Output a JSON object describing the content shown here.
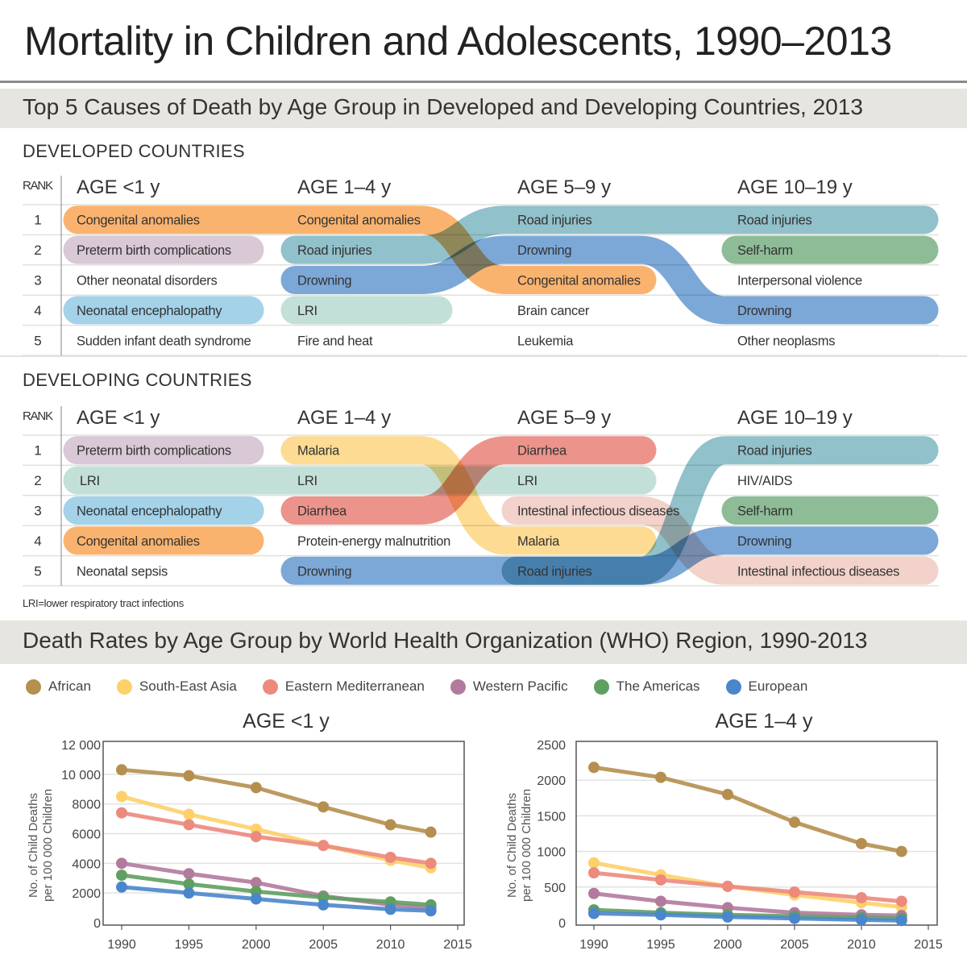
{
  "title": "Mortality in Children and Adolescents, 1990–2013",
  "section1": {
    "heading": "Top 5 Causes of Death by Age Group in Developed and Developing Countries, 2013",
    "rank_label": "RANK",
    "age_groups": [
      "AGE <1 y",
      "AGE 1–4 y",
      "AGE 5–9 y",
      "AGE 10–19 y"
    ],
    "ranks": [
      "1",
      "2",
      "3",
      "4",
      "5"
    ],
    "cause_colors": {
      "Congenital anomalies": "#f9a85a",
      "Preterm birth complications": "#d4c0d0",
      "Neonatal encephalopathy": "#96cce6",
      "Road injuries": "#82b8c4",
      "Drowning": "#6a9cd3",
      "LRI": "#b9dcd1",
      "Self-harm": "#7db389",
      "Malaria": "#fdd683",
      "Diarrhea": "#e9857b",
      "Intestinal infectious diseases": "#f0ccc3"
    },
    "developed": {
      "label": "DEVELOPED COUNTRIES",
      "columns": [
        [
          "Congenital anomalies",
          "Preterm birth complications",
          "Other neonatal disorders",
          "Neonatal encephalopathy",
          "Sudden infant death syndrome"
        ],
        [
          "Congenital anomalies",
          "Road injuries",
          "Drowning",
          "LRI",
          "Fire and heat"
        ],
        [
          "Road injuries",
          "Drowning",
          "Congenital anomalies",
          "Brain cancer",
          "Leukemia"
        ],
        [
          "Road injuries",
          "Self-harm",
          "Interpersonal violence",
          "Drowning",
          "Other neoplasms"
        ]
      ],
      "flows": [
        {
          "cause": "Congenital anomalies",
          "ranks_by_age": [
            1,
            1,
            3,
            null
          ]
        },
        {
          "cause": "Road injuries",
          "ranks_by_age": [
            null,
            2,
            1,
            1
          ]
        },
        {
          "cause": "Drowning",
          "ranks_by_age": [
            null,
            3,
            2,
            4
          ]
        },
        {
          "cause": "Preterm birth complications",
          "ranks_by_age": [
            2,
            null,
            null,
            null
          ]
        },
        {
          "cause": "Neonatal encephalopathy",
          "ranks_by_age": [
            4,
            null,
            null,
            null
          ]
        },
        {
          "cause": "LRI",
          "ranks_by_age": [
            null,
            4,
            null,
            null
          ]
        },
        {
          "cause": "Self-harm",
          "ranks_by_age": [
            null,
            null,
            null,
            2
          ]
        }
      ]
    },
    "developing": {
      "label": "DEVELOPING COUNTRIES",
      "columns": [
        [
          "Preterm birth complications",
          "LRI",
          "Neonatal encephalopathy",
          "Congenital anomalies",
          "Neonatal sepsis"
        ],
        [
          "Malaria",
          "LRI",
          "Diarrhea",
          "Protein-energy malnutrition",
          "Drowning"
        ],
        [
          "Diarrhea",
          "LRI",
          "Intestinal infectious diseases",
          "Malaria",
          "Road injuries"
        ],
        [
          "Road injuries",
          "HIV/AIDS",
          "Self-harm",
          "Drowning",
          "Intestinal infectious diseases"
        ]
      ],
      "flows": [
        {
          "cause": "Preterm birth complications",
          "ranks_by_age": [
            1,
            null,
            null,
            null
          ]
        },
        {
          "cause": "LRI",
          "ranks_by_age": [
            2,
            2,
            2,
            null
          ]
        },
        {
          "cause": "Neonatal encephalopathy",
          "ranks_by_age": [
            3,
            null,
            null,
            null
          ]
        },
        {
          "cause": "Congenital anomalies",
          "ranks_by_age": [
            4,
            null,
            null,
            null
          ]
        },
        {
          "cause": "Malaria",
          "ranks_by_age": [
            null,
            1,
            4,
            null
          ]
        },
        {
          "cause": "Diarrhea",
          "ranks_by_age": [
            null,
            3,
            1,
            null
          ]
        },
        {
          "cause": "Drowning",
          "ranks_by_age": [
            null,
            5,
            null,
            4
          ]
        },
        {
          "cause": "Intestinal infectious diseases",
          "ranks_by_age": [
            null,
            null,
            3,
            5
          ]
        },
        {
          "cause": "Road injuries",
          "ranks_by_age": [
            null,
            null,
            5,
            1
          ]
        },
        {
          "cause": "Self-harm",
          "ranks_by_age": [
            null,
            null,
            null,
            3
          ]
        }
      ]
    },
    "footnote": "LRI=lower respiratory tract infections"
  },
  "section2": {
    "heading": "Death Rates by Age Group by World Health Organization (WHO) Region, 1990-2013",
    "legend": [
      {
        "name": "African",
        "color": "#b58f4f"
      },
      {
        "name": "South-East Asia",
        "color": "#fdd06a"
      },
      {
        "name": "Eastern Mediterranean",
        "color": "#ec8a7e"
      },
      {
        "name": "Western Pacific",
        "color": "#b27a9d"
      },
      {
        "name": "The Americas",
        "color": "#5f9f60"
      },
      {
        "name": "European",
        "color": "#4a86cb"
      }
    ]
  },
  "chart_data": [
    {
      "type": "line",
      "title": "AGE <1 y",
      "xlabel": "",
      "ylabel": "No. of Child Deaths per 100 000 Children",
      "ylabel_lines": [
        "No. of Child Deaths",
        "per 100 000 Children"
      ],
      "xlim": [
        1990,
        2015
      ],
      "ylim": [
        0,
        12000
      ],
      "x_ticks": [
        "1990",
        "1995",
        "2000",
        "2005",
        "2010",
        "2015"
      ],
      "y_ticks": [
        0,
        2000,
        4000,
        6000,
        8000,
        10000,
        12000
      ],
      "y_tick_labels": [
        "0",
        "2000",
        "4000",
        "6000",
        "8000",
        "10 000",
        "12 000"
      ],
      "grid": true,
      "legend": "top",
      "x": [
        1990,
        1995,
        2000,
        2005,
        2010,
        2013
      ],
      "series": [
        {
          "name": "African",
          "values": [
            10300,
            9900,
            9100,
            7800,
            6600,
            6100
          ]
        },
        {
          "name": "South-East Asia",
          "values": [
            8500,
            7300,
            6300,
            5200,
            4200,
            3700
          ]
        },
        {
          "name": "Eastern Mediterranean",
          "values": [
            7400,
            6600,
            5800,
            5200,
            4400,
            4000
          ]
        },
        {
          "name": "Western Pacific",
          "values": [
            4000,
            3300,
            2700,
            1800,
            1200,
            1000
          ]
        },
        {
          "name": "The Americas",
          "values": [
            3200,
            2600,
            2100,
            1700,
            1400,
            1200
          ]
        },
        {
          "name": "European",
          "values": [
            2400,
            2000,
            1600,
            1200,
            900,
            800
          ]
        }
      ]
    },
    {
      "type": "line",
      "title": "AGE 1–4 y",
      "xlabel": "",
      "ylabel": "No. of Child Deaths per 100 000 Children",
      "ylabel_lines": [
        "No. of Child Deaths",
        "per 100 000 Children"
      ],
      "xlim": [
        1990,
        2015
      ],
      "ylim": [
        0,
        2500
      ],
      "x_ticks": [
        "1990",
        "1995",
        "2000",
        "2005",
        "2010",
        "2015"
      ],
      "y_ticks": [
        0,
        500,
        1000,
        1500,
        2000,
        2500
      ],
      "y_tick_labels": [
        "0",
        "500",
        "1000",
        "1500",
        "2000",
        "2500"
      ],
      "grid": true,
      "legend": "top",
      "x": [
        1990,
        1995,
        2000,
        2005,
        2010,
        2013
      ],
      "series": [
        {
          "name": "African",
          "values": [
            2180,
            2040,
            1800,
            1410,
            1110,
            1000
          ]
        },
        {
          "name": "South-East Asia",
          "values": [
            840,
            670,
            510,
            390,
            280,
            220
          ]
        },
        {
          "name": "Eastern Mediterranean",
          "values": [
            700,
            600,
            510,
            430,
            350,
            300
          ]
        },
        {
          "name": "Western Pacific",
          "values": [
            410,
            300,
            210,
            140,
            110,
            100
          ]
        },
        {
          "name": "The Americas",
          "values": [
            180,
            140,
            110,
            90,
            70,
            60
          ]
        },
        {
          "name": "European",
          "values": [
            130,
            110,
            80,
            60,
            40,
            30
          ]
        }
      ]
    }
  ]
}
